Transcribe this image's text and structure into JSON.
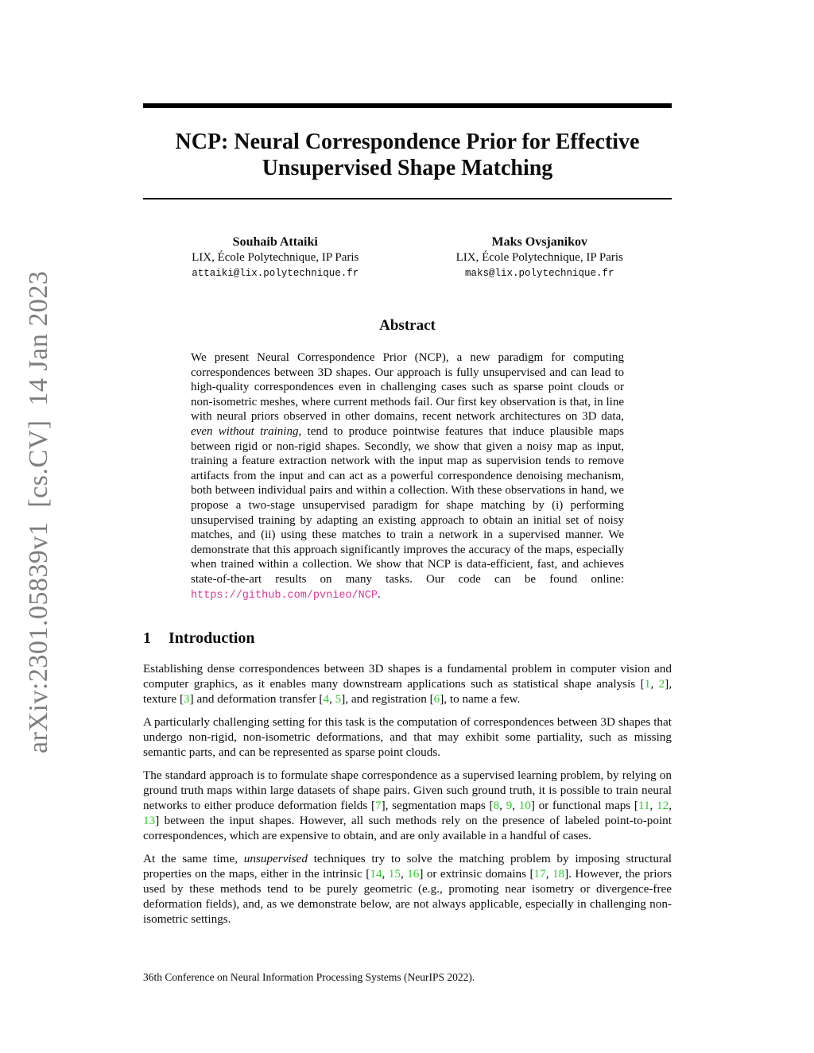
{
  "arxiv_watermark": "arXiv:2301.05839v1  [cs.CV]  14 Jan 2023",
  "title": {
    "lines": [
      "NCP: Neural Correspondence Prior for Effective",
      "Unsupervised Shape Matching"
    ]
  },
  "authors": [
    {
      "name": "Souhaib Attaiki",
      "affiliation": "LIX, École Polytechnique, IP Paris",
      "email": "attaiki@lix.polytechnique.fr"
    },
    {
      "name": "Maks Ovsjanikov",
      "affiliation": "LIX, École Polytechnique, IP Paris",
      "email": "maks@lix.polytechnique.fr"
    }
  ],
  "abstract": {
    "heading": "Abstract",
    "segments": [
      {
        "t": "We present Neural Correspondence Prior (NCP), a new paradigm for computing correspondences between 3D shapes. Our approach is fully unsupervised and can lead to high-quality correspondences even in challenging cases such as sparse point clouds or non-isometric meshes, where current methods fail. Our first key observation is that, in line with neural priors observed in other domains, recent network architectures on 3D data, "
      },
      {
        "t": "even without training",
        "s": "italic"
      },
      {
        "t": ", tend to produce pointwise features that induce plausible maps between rigid or non-rigid shapes. Secondly, we show that given a noisy map as input, training a feature extraction network with the input map as supervision tends to remove artifacts from the input and can act as a powerful correspondence denoising mechanism, both between individual pairs and within a collection. With these observations in hand, we propose a two-stage unsupervised paradigm for shape matching by (i) performing unsupervised training by adapting an existing approach to obtain an initial set of noisy matches, and (ii) using these matches to train a network in a supervised manner. We demonstrate that this approach significantly improves the accuracy of the maps, especially when trained within a collection. We show that NCP is data-efficient, fast, and achieves state-of-the-art results on many tasks. Our code can be found online: "
      },
      {
        "t": "https://github.com/pvnieo/NCP",
        "s": "link",
        "n": "github-code-link",
        "i": true
      },
      {
        "t": "."
      }
    ]
  },
  "intro": {
    "number": "1",
    "heading": "Introduction",
    "paragraphs": [
      {
        "segments": [
          {
            "t": "Establishing dense correspondences between 3D shapes is a fundamental problem in computer vision and computer graphics, as it enables many downstream applications such as statistical shape analysis ["
          },
          {
            "t": "1",
            "s": "cite",
            "n": "citation-link",
            "i": true
          },
          {
            "t": ", "
          },
          {
            "t": "2",
            "s": "cite",
            "n": "citation-link",
            "i": true
          },
          {
            "t": "], texture ["
          },
          {
            "t": "3",
            "s": "cite",
            "n": "citation-link",
            "i": true
          },
          {
            "t": "] and deformation transfer ["
          },
          {
            "t": "4",
            "s": "cite",
            "n": "citation-link",
            "i": true
          },
          {
            "t": ", "
          },
          {
            "t": "5",
            "s": "cite",
            "n": "citation-link",
            "i": true
          },
          {
            "t": "], and registration ["
          },
          {
            "t": "6",
            "s": "cite",
            "n": "citation-link",
            "i": true
          },
          {
            "t": "], to name a few."
          }
        ]
      },
      {
        "segments": [
          {
            "t": "A particularly challenging setting for this task is the computation of correspondences between 3D shapes that undergo non-rigid, non-isometric deformations, and that may exhibit some partiality, such as missing semantic parts, and can be represented as sparse point clouds."
          }
        ]
      },
      {
        "segments": [
          {
            "t": "The standard approach is to formulate shape correspondence as a supervised learning problem, by relying on ground truth maps within large datasets of shape pairs. Given such ground truth, it is possible to train neural networks to either produce deformation fields ["
          },
          {
            "t": "7",
            "s": "cite",
            "n": "citation-link",
            "i": true
          },
          {
            "t": "], segmentation maps ["
          },
          {
            "t": "8",
            "s": "cite",
            "n": "citation-link",
            "i": true
          },
          {
            "t": ", "
          },
          {
            "t": "9",
            "s": "cite",
            "n": "citation-link",
            "i": true
          },
          {
            "t": ", "
          },
          {
            "t": "10",
            "s": "cite",
            "n": "citation-link",
            "i": true
          },
          {
            "t": "] or functional maps ["
          },
          {
            "t": "11",
            "s": "cite",
            "n": "citation-link",
            "i": true
          },
          {
            "t": ", "
          },
          {
            "t": "12",
            "s": "cite",
            "n": "citation-link",
            "i": true
          },
          {
            "t": ", "
          },
          {
            "t": "13",
            "s": "cite",
            "n": "citation-link",
            "i": true
          },
          {
            "t": "] between the input shapes. However, all such methods rely on the presence of labeled point-to-point correspondences, which are expensive to obtain, and are only available in a handful of cases."
          }
        ]
      },
      {
        "segments": [
          {
            "t": "At the same time, "
          },
          {
            "t": "unsupervised",
            "s": "italic"
          },
          {
            "t": " techniques try to solve the matching problem by imposing structural properties on the maps, either in the intrinsic ["
          },
          {
            "t": "14",
            "s": "cite",
            "n": "citation-link",
            "i": true
          },
          {
            "t": ", "
          },
          {
            "t": "15",
            "s": "cite",
            "n": "citation-link",
            "i": true
          },
          {
            "t": ", "
          },
          {
            "t": "16",
            "s": "cite",
            "n": "citation-link",
            "i": true
          },
          {
            "t": "] or extrinsic domains ["
          },
          {
            "t": "17",
            "s": "cite",
            "n": "citation-link",
            "i": true
          },
          {
            "t": ", "
          },
          {
            "t": "18",
            "s": "cite",
            "n": "citation-link",
            "i": true
          },
          {
            "t": "]. However, the priors used by these methods tend to be purely geometric (e.g., promoting near isometry or divergence-free deformation fields), and, as we demonstrate below, are not always applicable, especially in challenging non-isometric settings."
          }
        ]
      }
    ]
  },
  "footer": "36th Conference on Neural Information Processing Systems (NeurIPS 2022).",
  "colors": {
    "citation_green": "#2ecc2e",
    "link_magenta": "#d53a97",
    "watermark_gray": "#7e7e7e",
    "rule_black": "#000000"
  }
}
